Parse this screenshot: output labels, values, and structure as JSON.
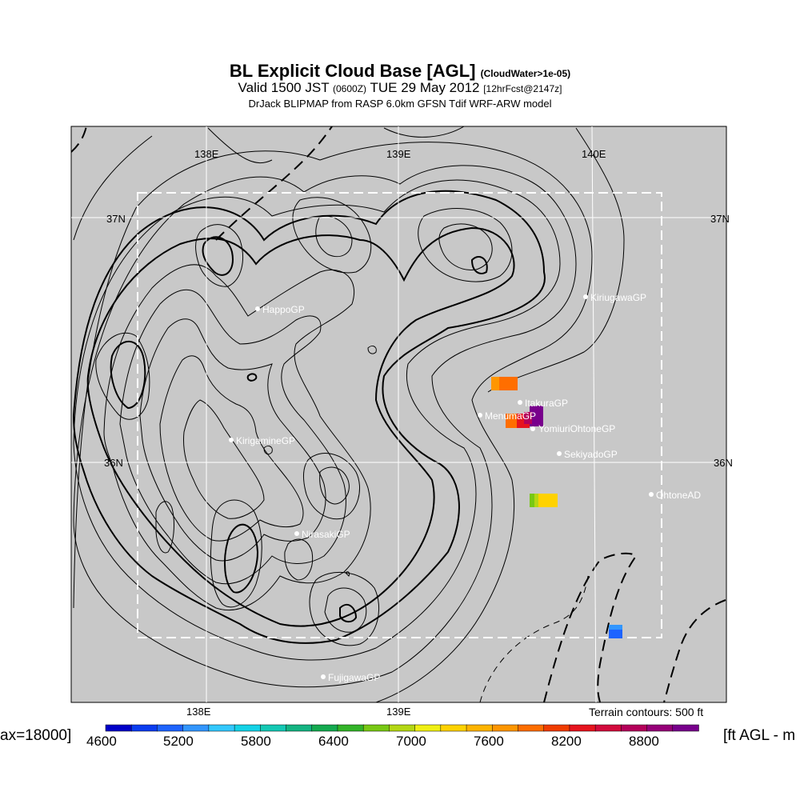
{
  "title": {
    "main": "BL Explicit Cloud Base [AGL]",
    "main_note": "(CloudWater>1e-05)",
    "valid_prefix": "Valid 1500 JST",
    "valid_zulu": "(0600Z)",
    "valid_date": "TUE 29 May 2012",
    "forecast_note": "[12hrFcst@2147z]",
    "source": "DrJack BLIPMAP from RASP 6.0km GFSN Tdif WRF-ARW model"
  },
  "map": {
    "lon_labels_top": [
      "138E",
      "139E",
      "140E"
    ],
    "lon_labels_bottom": [
      "138E",
      "139E"
    ],
    "lat_labels_left": [
      "37N",
      "36N"
    ],
    "lat_labels_right": [
      "37N",
      "36N"
    ],
    "terrain_note": "Terrain contours: 500 ft",
    "background_color": "#c8c8c8",
    "sites": [
      {
        "name": "HappoGP"
      },
      {
        "name": "KirigamineGP"
      },
      {
        "name": "NirasakiGP"
      },
      {
        "name": "FujigawaGP"
      },
      {
        "name": "KiriugawaGP"
      },
      {
        "name": "ItakuraGP"
      },
      {
        "name": "MenumaGP"
      },
      {
        "name": "YomiuriOhtoneGP"
      },
      {
        "name": "SekiyadoGP"
      },
      {
        "name": "OhtoneAD"
      }
    ]
  },
  "colorbar": {
    "left_text": "ax=18000]",
    "right_text": "[ft AGL - m",
    "tick_labels": [
      "4600",
      "5200",
      "5800",
      "6400",
      "7000",
      "7600",
      "8200",
      "8800"
    ],
    "colors": [
      "#0000c8",
      "#0a3cf0",
      "#1e64ff",
      "#3296ff",
      "#32c8ff",
      "#14d2e6",
      "#14c8b4",
      "#14b482",
      "#14aa50",
      "#32b428",
      "#78c814",
      "#b4d714",
      "#f0f014",
      "#ffd200",
      "#ffb400",
      "#ff9600",
      "#ff6e00",
      "#f03c00",
      "#e6141e",
      "#d20a3c",
      "#b4005a",
      "#960078",
      "#78008c"
    ]
  }
}
